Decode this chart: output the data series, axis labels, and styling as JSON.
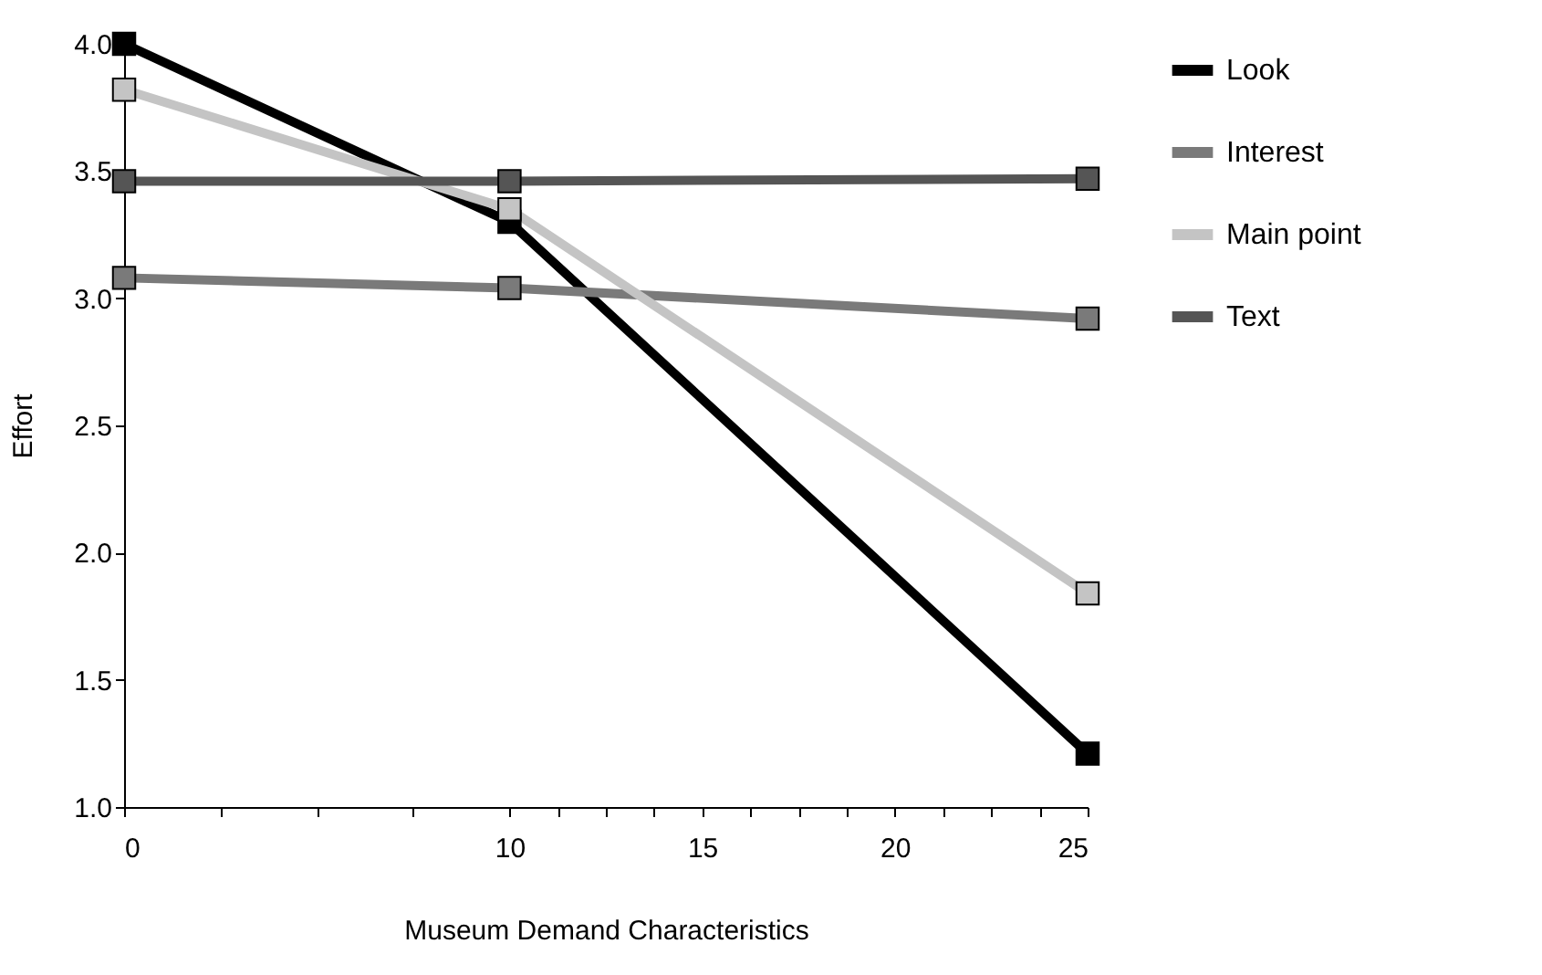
{
  "chart_data": {
    "type": "line",
    "xlabel": "Museum Demand Characteristics",
    "ylabel": "Effort",
    "x": [
      0,
      10,
      25
    ],
    "series": [
      {
        "name": "Look",
        "color": "#000000",
        "values": [
          4.0,
          3.3,
          1.21
        ]
      },
      {
        "name": "Interest",
        "color": "#7a7a7a",
        "values": [
          3.08,
          3.04,
          2.92
        ]
      },
      {
        "name": "Main point",
        "color": "#c4c4c4",
        "values": [
          3.82,
          3.35,
          1.84
        ]
      },
      {
        "name": "Text",
        "color": "#555555",
        "values": [
          3.46,
          3.46,
          3.47
        ]
      }
    ],
    "xlim": [
      0,
      25
    ],
    "xticks": [
      0,
      {
        "value": 2.5,
        "label": null
      },
      {
        "value": 5,
        "label": null
      },
      {
        "value": 7.5,
        "label": null
      },
      10,
      {
        "value": 11.25,
        "label": null
      },
      {
        "value": 12.5,
        "label": null
      },
      {
        "value": 13.75,
        "label": null
      },
      15,
      {
        "value": 16.25,
        "label": null
      },
      {
        "value": 17.5,
        "label": null
      },
      {
        "value": 18.75,
        "label": null
      },
      20,
      {
        "value": 21.25,
        "label": null
      },
      {
        "value": 22.5,
        "label": null
      },
      {
        "value": 23.75,
        "label": null
      },
      25
    ],
    "ylim": [
      1.0,
      4.0
    ],
    "yticks": [
      {
        "value": 1,
        "label": "1.0"
      },
      1.5,
      {
        "value": 2,
        "label": "2.0"
      },
      2.5,
      {
        "value": 3,
        "label": "3.0"
      },
      3.5,
      {
        "value": 4,
        "label": "4.0"
      }
    ],
    "grid": false,
    "legend": "right",
    "marker": "square",
    "line_style": "solid"
  }
}
